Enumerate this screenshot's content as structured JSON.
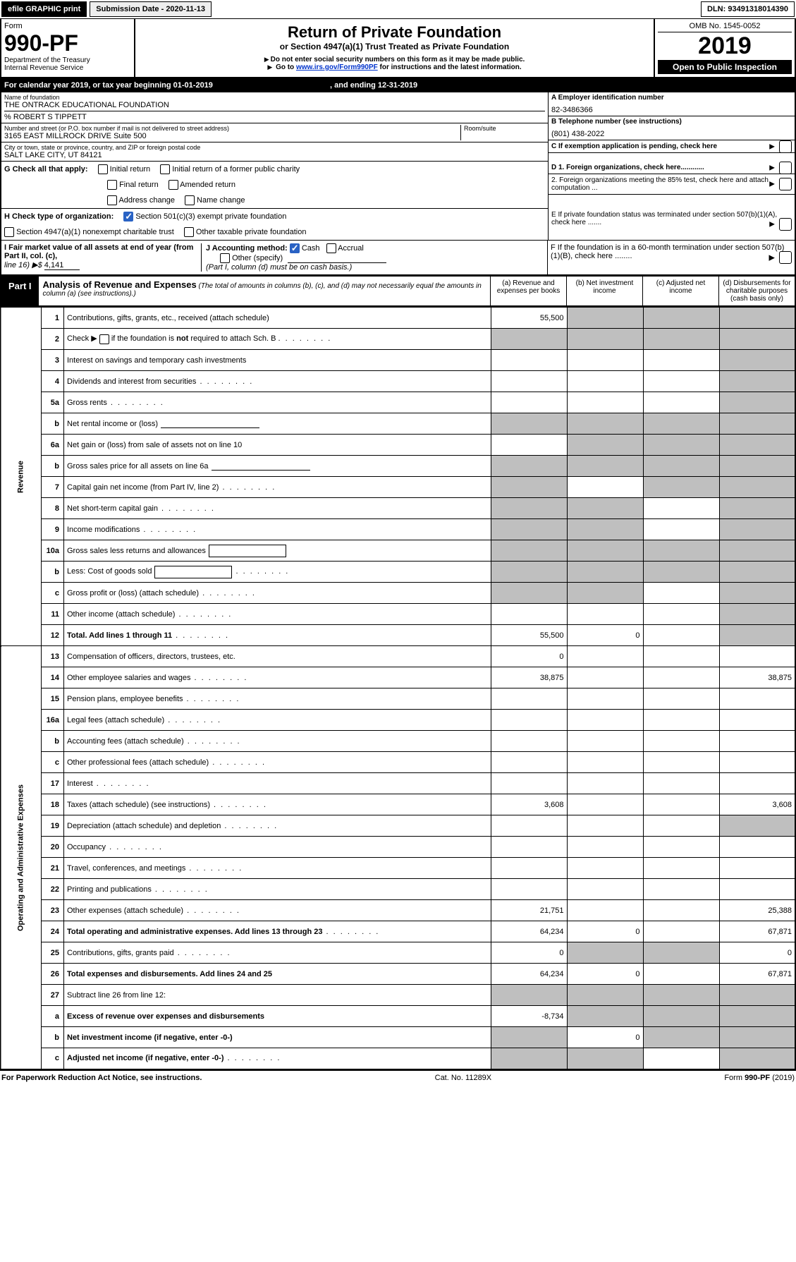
{
  "header": {
    "efile": "efile GRAPHIC print",
    "submission": "Submission Date - 2020-11-13",
    "dln": "DLN: 93491318014390"
  },
  "formhead": {
    "form_word": "Form",
    "form_num": "990-PF",
    "dept": "Department of the Treasury",
    "irs": "Internal Revenue Service",
    "title": "Return of Private Foundation",
    "subtitle": "or Section 4947(a)(1) Trust Treated as Private Foundation",
    "instr1": "Do not enter social security numbers on this form as it may be made public.",
    "instr2_pre": "Go to ",
    "instr2_link": "www.irs.gov/Form990PF",
    "instr2_post": " for instructions and the latest information.",
    "omb": "OMB No. 1545-0052",
    "year": "2019",
    "open": "Open to Public Inspection"
  },
  "cal": {
    "line_a": "For calendar year 2019, or tax year beginning 01-01-2019",
    "line_b": ", and ending 12-31-2019"
  },
  "entity": {
    "name_label": "Name of foundation",
    "name": "THE ONTRACK EDUCATIONAL FOUNDATION",
    "care_of": "% ROBERT S TIPPETT",
    "addr_label": "Number and street (or P.O. box number if mail is not delivered to street address)",
    "addr": "3165 EAST MILLROCK DRIVE Suite 500",
    "room_label": "Room/suite",
    "city_label": "City or town, state or province, country, and ZIP or foreign postal code",
    "city": "SALT LAKE CITY, UT  84121"
  },
  "right": {
    "a_label": "A Employer identification number",
    "a_val": "82-3486366",
    "b_label": "B Telephone number (see instructions)",
    "b_val": "(801) 438-2022",
    "c_label": "C If exemption application is pending, check here",
    "d1": "D 1. Foreign organizations, check here............",
    "d2": "2. Foreign organizations meeting the 85% test, check here and attach computation ...",
    "e": "E  If private foundation status was terminated under section 507(b)(1)(A), check here .......",
    "f": "F  If the foundation is in a 60-month termination under section 507(b)(1)(B), check here ........"
  },
  "g": {
    "label": "G Check all that apply:",
    "opts": [
      "Initial return",
      "Initial return of a former public charity",
      "Final return",
      "Amended return",
      "Address change",
      "Name change"
    ]
  },
  "h": {
    "label": "H Check type of organization:",
    "opt1": "Section 501(c)(3) exempt private foundation",
    "opt2": "Section 4947(a)(1) nonexempt charitable trust",
    "opt3": "Other taxable private foundation"
  },
  "i": {
    "label": "I Fair market value of all assets at end of year (from Part II, col. (c),",
    "line16": "line 16) ▶$ ",
    "val": "4,141"
  },
  "j": {
    "label": "J Accounting method:",
    "cash": "Cash",
    "accrual": "Accrual",
    "other": "Other (specify)",
    "note": "(Part I, column (d) must be on cash basis.)"
  },
  "part1": {
    "label": "Part I",
    "title": "Analysis of Revenue and Expenses",
    "note": "(The total of amounts in columns (b), (c), and (d) may not necessarily equal the amounts in column (a) (see instructions).)",
    "col_a": "(a)    Revenue and expenses per books",
    "col_b": "(b)   Net investment income",
    "col_c": "(c)   Adjusted net income",
    "col_d": "(d)   Disbursements for charitable purposes (cash basis only)"
  },
  "sections": {
    "revenue": "Revenue",
    "opexp": "Operating and Administrative Expenses"
  },
  "rows": [
    {
      "n": "1",
      "d": "Contributions, gifts, grants, etc., received (attach schedule)",
      "a": "55,500",
      "b": "grey",
      "c": "grey",
      "dd": "grey"
    },
    {
      "n": "2",
      "d": "Check ▶ ☐ if the foundation is not required to attach Sch. B",
      "a": "grey",
      "b": "grey",
      "c": "grey",
      "dd": "grey",
      "special": "check"
    },
    {
      "n": "3",
      "d": "Interest on savings and temporary cash investments",
      "a": "",
      "b": "",
      "c": "",
      "dd": "grey"
    },
    {
      "n": "4",
      "d": "Dividends and interest from securities",
      "a": "",
      "b": "",
      "c": "",
      "dd": "grey",
      "dots": true
    },
    {
      "n": "5a",
      "d": "Gross rents",
      "a": "",
      "b": "",
      "c": "",
      "dd": "grey",
      "dots": true
    },
    {
      "n": "b",
      "d": "Net rental income or (loss)",
      "a": "grey",
      "b": "grey",
      "c": "grey",
      "dd": "grey",
      "inline_line": true
    },
    {
      "n": "6a",
      "d": "Net gain or (loss) from sale of assets not on line 10",
      "a": "",
      "b": "grey",
      "c": "grey",
      "dd": "grey"
    },
    {
      "n": "b",
      "d": "Gross sales price for all assets on line 6a",
      "a": "grey",
      "b": "grey",
      "c": "grey",
      "dd": "grey",
      "inline_line": true
    },
    {
      "n": "7",
      "d": "Capital gain net income (from Part IV, line 2)",
      "a": "grey",
      "b": "",
      "c": "grey",
      "dd": "grey",
      "dots": true
    },
    {
      "n": "8",
      "d": "Net short-term capital gain",
      "a": "grey",
      "b": "grey",
      "c": "",
      "dd": "grey",
      "dots": true
    },
    {
      "n": "9",
      "d": "Income modifications",
      "a": "grey",
      "b": "grey",
      "c": "",
      "dd": "grey",
      "dots": true
    },
    {
      "n": "10a",
      "d": "Gross sales less returns and allowances",
      "a": "grey",
      "b": "grey",
      "c": "grey",
      "dd": "grey",
      "inline_box": true
    },
    {
      "n": "b",
      "d": "Less: Cost of goods sold",
      "a": "grey",
      "b": "grey",
      "c": "grey",
      "dd": "grey",
      "inline_box": true,
      "dots": true
    },
    {
      "n": "c",
      "d": "Gross profit or (loss) (attach schedule)",
      "a": "grey",
      "b": "grey",
      "c": "",
      "dd": "grey",
      "dots": true
    },
    {
      "n": "11",
      "d": "Other income (attach schedule)",
      "a": "",
      "b": "",
      "c": "",
      "dd": "grey",
      "dots": true
    },
    {
      "n": "12",
      "d": "Total. Add lines 1 through 11",
      "a": "55,500",
      "b": "0",
      "c": "",
      "dd": "grey",
      "bold": true,
      "dots": true
    },
    {
      "n": "13",
      "d": "Compensation of officers, directors, trustees, etc.",
      "a": "0",
      "b": "",
      "c": "",
      "dd": ""
    },
    {
      "n": "14",
      "d": "Other employee salaries and wages",
      "a": "38,875",
      "b": "",
      "c": "",
      "dd": "38,875",
      "dots": true
    },
    {
      "n": "15",
      "d": "Pension plans, employee benefits",
      "a": "",
      "b": "",
      "c": "",
      "dd": "",
      "dots": true
    },
    {
      "n": "16a",
      "d": "Legal fees (attach schedule)",
      "a": "",
      "b": "",
      "c": "",
      "dd": "",
      "dots": true
    },
    {
      "n": "b",
      "d": "Accounting fees (attach schedule)",
      "a": "",
      "b": "",
      "c": "",
      "dd": "",
      "dots": true
    },
    {
      "n": "c",
      "d": "Other professional fees (attach schedule)",
      "a": "",
      "b": "",
      "c": "",
      "dd": "",
      "dots": true
    },
    {
      "n": "17",
      "d": "Interest",
      "a": "",
      "b": "",
      "c": "",
      "dd": "",
      "dots": true
    },
    {
      "n": "18",
      "d": "Taxes (attach schedule) (see instructions)",
      "a": "3,608",
      "b": "",
      "c": "",
      "dd": "3,608",
      "dots": true
    },
    {
      "n": "19",
      "d": "Depreciation (attach schedule) and depletion",
      "a": "",
      "b": "",
      "c": "",
      "dd": "grey",
      "dots": true
    },
    {
      "n": "20",
      "d": "Occupancy",
      "a": "",
      "b": "",
      "c": "",
      "dd": "",
      "dots": true
    },
    {
      "n": "21",
      "d": "Travel, conferences, and meetings",
      "a": "",
      "b": "",
      "c": "",
      "dd": "",
      "dots": true
    },
    {
      "n": "22",
      "d": "Printing and publications",
      "a": "",
      "b": "",
      "c": "",
      "dd": "",
      "dots": true
    },
    {
      "n": "23",
      "d": "Other expenses (attach schedule)",
      "a": "21,751",
      "b": "",
      "c": "",
      "dd": "25,388",
      "dots": true
    },
    {
      "n": "24",
      "d": "Total operating and administrative expenses. Add lines 13 through 23",
      "a": "64,234",
      "b": "0",
      "c": "",
      "dd": "67,871",
      "bold": true,
      "dots": true
    },
    {
      "n": "25",
      "d": "Contributions, gifts, grants paid",
      "a": "0",
      "b": "grey",
      "c": "grey",
      "dd": "0",
      "dots": true
    },
    {
      "n": "26",
      "d": "Total expenses and disbursements. Add lines 24 and 25",
      "a": "64,234",
      "b": "0",
      "c": "",
      "dd": "67,871",
      "bold": true
    },
    {
      "n": "27",
      "d": "Subtract line 26 from line 12:",
      "a": "grey",
      "b": "grey",
      "c": "grey",
      "dd": "grey"
    },
    {
      "n": "a",
      "d": "Excess of revenue over expenses and disbursements",
      "a": "-8,734",
      "b": "grey",
      "c": "grey",
      "dd": "grey",
      "bold": true
    },
    {
      "n": "b",
      "d": "Net investment income (if negative, enter -0-)",
      "a": "grey",
      "b": "0",
      "c": "grey",
      "dd": "grey",
      "bold": true
    },
    {
      "n": "c",
      "d": "Adjusted net income (if negative, enter -0-)",
      "a": "grey",
      "b": "grey",
      "c": "",
      "dd": "grey",
      "bold": true,
      "dots": true
    }
  ],
  "footer": {
    "left": "For Paperwork Reduction Act Notice, see instructions.",
    "center": "Cat. No. 11289X",
    "right": "Form 990-PF (2019)"
  }
}
